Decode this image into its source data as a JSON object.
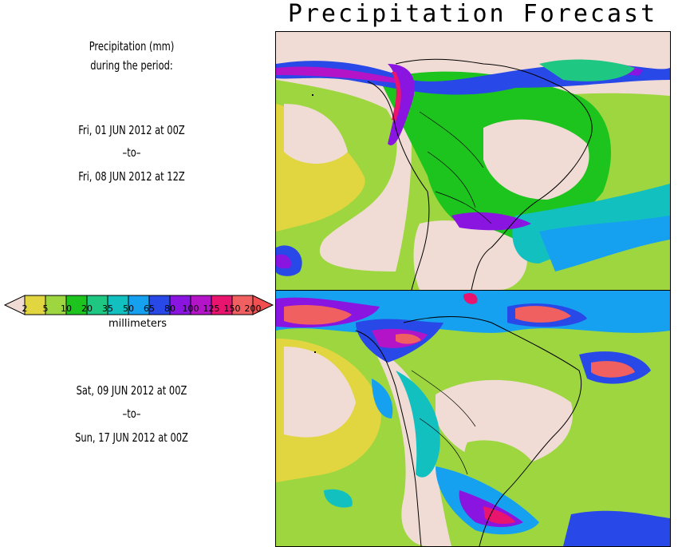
{
  "title": "Precipitation Forecast",
  "header": {
    "line1": "Precipitation (mm)",
    "line2": "during the period:"
  },
  "period1": {
    "start": "Fri, 01 JUN 2012 at 00Z",
    "sep": "–to–",
    "end": "Fri, 08 JUN 2012 at 12Z"
  },
  "period2": {
    "start": "Sat, 09 JUN 2012 at 00Z",
    "sep": "–to–",
    "end": "Sun, 17 JUN 2012 at 00Z"
  },
  "colorbar": {
    "units": "millimeters",
    "ticks": [
      "2",
      "5",
      "10",
      "20",
      "35",
      "50",
      "65",
      "80",
      "100",
      "125",
      "150",
      "200"
    ],
    "colors": [
      "#e2d640",
      "#9ed640",
      "#1ec41e",
      "#1ec883",
      "#12c0c0",
      "#16a0f0",
      "#2848e8",
      "#8a14e0",
      "#b414c8",
      "#e8146e",
      "#f06060"
    ],
    "below_color": "#f0dcd4",
    "above_color": "#f25050"
  }
}
